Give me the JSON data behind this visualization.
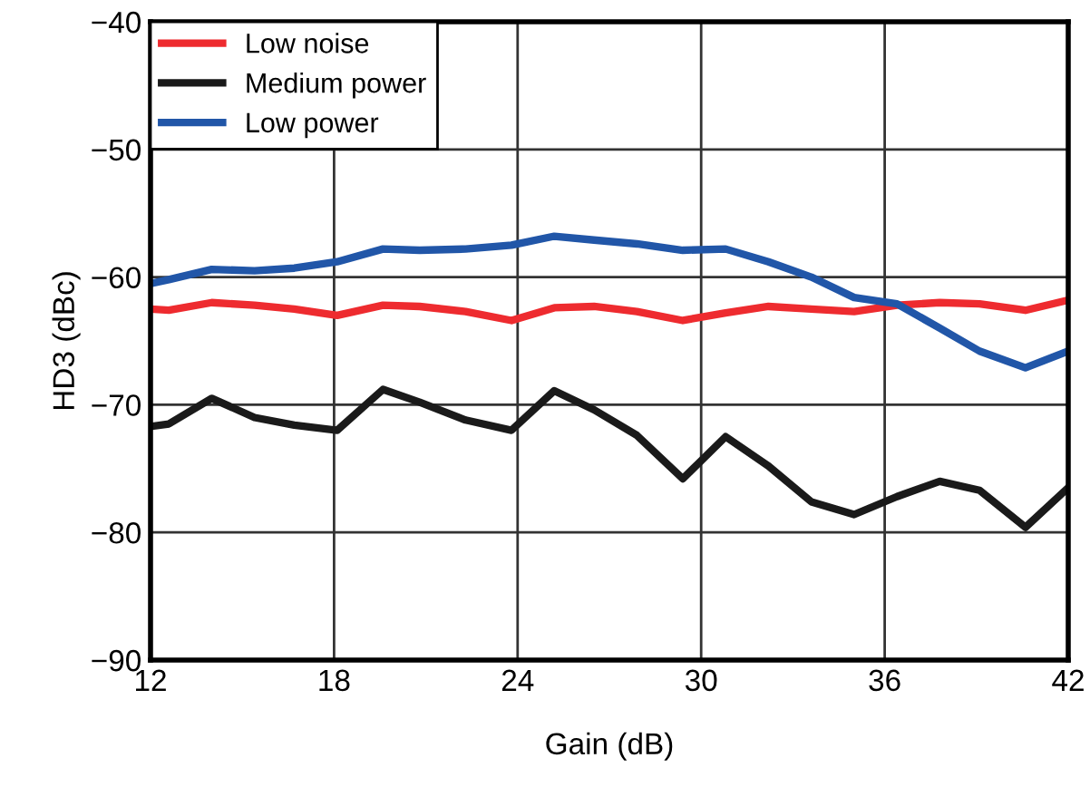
{
  "chart_data": {
    "type": "line",
    "xlabel": "Gain (dB)",
    "ylabel": "HD3 (dBc)",
    "x": [
      12,
      12.6,
      14.0,
      15.4,
      16.7,
      18.1,
      19.6,
      20.8,
      22.3,
      23.8,
      25.2,
      26.5,
      27.9,
      29.4,
      30.8,
      32.2,
      33.6,
      35.0,
      36.4,
      37.8,
      39.1,
      40.6,
      42
    ],
    "series": [
      {
        "name": "Low noise",
        "color": "#ee2b2f",
        "values": [
          -62.5,
          -62.6,
          -62,
          -62.2,
          -62.5,
          -63,
          -62.2,
          -62.3,
          -62.7,
          -63.4,
          -62.4,
          -62.3,
          -62.7,
          -63.4,
          -62.8,
          -62.3,
          -62.5,
          -62.7,
          -62.2,
          -62,
          -62.1,
          -62.6,
          -61.8
        ]
      },
      {
        "name": "Medium power",
        "color": "#1a1a1a",
        "values": [
          -71.7,
          -71.5,
          -69.5,
          -71,
          -71.6,
          -72,
          -68.8,
          -69.8,
          -71.2,
          -72,
          -68.9,
          -70.4,
          -72.4,
          -75.8,
          -72.5,
          -74.8,
          -77.6,
          -78.6,
          -77.2,
          -76,
          -76.7,
          -79.6,
          -76.5
        ]
      },
      {
        "name": "Low power",
        "color": "#2156a8",
        "values": [
          -60.5,
          -60.2,
          -59.4,
          -59.5,
          -59.3,
          -58.8,
          -57.8,
          -57.9,
          -57.8,
          -57.5,
          -56.8,
          -57.1,
          -57.4,
          -57.9,
          -57.8,
          -58.8,
          -60.0,
          -61.6,
          -62.1,
          -64,
          -65.8,
          -67.1,
          -65.8
        ]
      }
    ],
    "xlim": [
      12,
      42
    ],
    "xticks": [
      12,
      18,
      24,
      30,
      36,
      42
    ],
    "ylim": [
      -90,
      -40
    ],
    "yticks": [
      {
        "value": -90,
        "label": "−90"
      },
      {
        "value": -80,
        "label": "−80"
      },
      {
        "value": -70,
        "label": "−70"
      },
      {
        "value": -60,
        "label": "−60"
      },
      {
        "value": -50,
        "label": "−50"
      },
      {
        "value": -40,
        "label": "−40"
      }
    ],
    "grid": true,
    "legend": "top left",
    "line_style": "solid",
    "marker": "none"
  }
}
